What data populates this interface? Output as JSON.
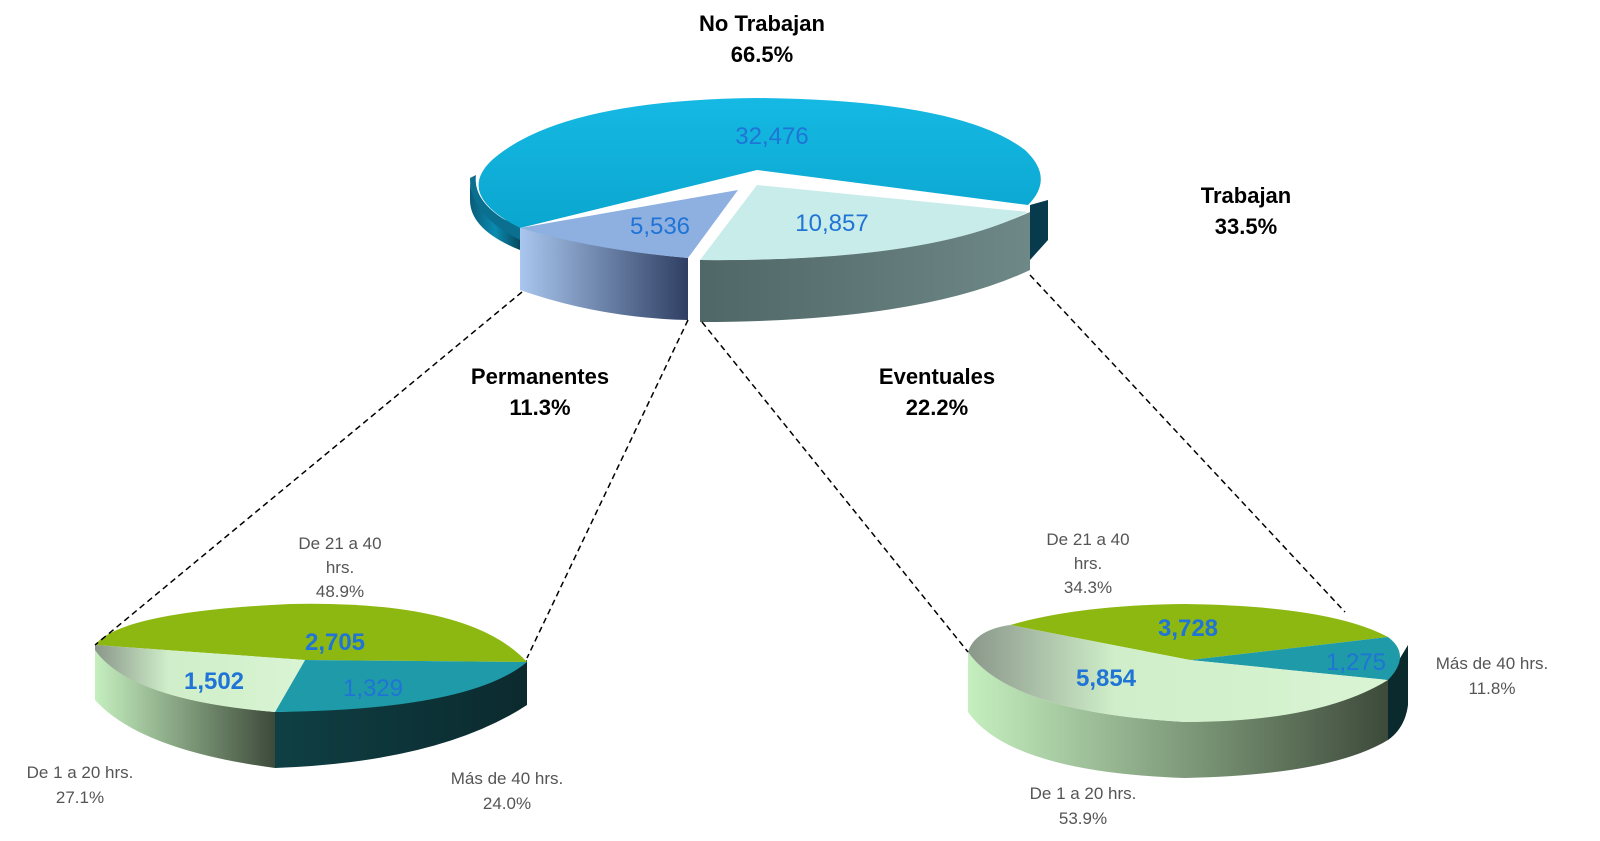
{
  "chart_data": [
    {
      "type": "pie",
      "slices": [
        {
          "label": "No Trabajan",
          "value": 32476,
          "percent": "66.5%",
          "value_text": "32,476",
          "color": "#0aa6cf"
        },
        {
          "label": "Trabajan",
          "value": 16393,
          "percent": "33.5%",
          "value_text": "",
          "color": "#5f7b7a"
        }
      ],
      "breakdown_of_trabajan": [
        {
          "label": "Permanentes",
          "value": 5536,
          "percent": "11.3%",
          "value_text": "5,536",
          "color": "#7ea1d6"
        },
        {
          "label": "Eventuales",
          "value": 10857,
          "percent": "22.2%",
          "value_text": "10,857",
          "color": "#c8ecea"
        }
      ]
    },
    {
      "type": "pie",
      "parent": "Permanentes",
      "slices": [
        {
          "label": "De 21 a 40 hrs.",
          "value": 2705,
          "percent": "48.9%",
          "value_text": "2,705",
          "color": "#8db812"
        },
        {
          "label": "Más de 40 hrs.",
          "value": 1329,
          "percent": "24.0%",
          "value_text": "1,329",
          "color": "#1e9aa8"
        },
        {
          "label": "De 1 a 20 hrs.",
          "value": 1502,
          "percent": "27.1%",
          "value_text": "1,502",
          "color": "#b9e8b4"
        }
      ]
    },
    {
      "type": "pie",
      "parent": "Eventuales",
      "slices": [
        {
          "label": "De 21 a 40 hrs.",
          "value": 3728,
          "percent": "34.3%",
          "value_text": "3,728",
          "color": "#8db812"
        },
        {
          "label": "Más de 40 hrs.",
          "value": 1275,
          "percent": "11.8%",
          "value_text": "1,275",
          "color": "#1e9aa8"
        },
        {
          "label": "De 1 a 20 hrs.",
          "value": 5854,
          "percent": "53.9%",
          "value_text": "5,854",
          "color": "#b9e8b4"
        }
      ]
    }
  ],
  "labels": {
    "no_trabajan": {
      "title": "No Trabajan",
      "pct": "66.5%"
    },
    "trabajan": {
      "title": "Trabajan",
      "pct": "33.5%"
    },
    "permanentes": {
      "title": "Permanentes",
      "pct": "11.3%"
    },
    "eventuales": {
      "title": "Eventuales",
      "pct": "22.2%"
    },
    "left_pie": {
      "h2140_line1": "De 21 a 40 hrs.",
      "h2140_pct": "48.9%",
      "h1_20": "De 1 a 20 hrs.",
      "h1_20_pct": "27.1%",
      "mas40": "Más de 40 hrs.",
      "mas40_pct": "24.0%"
    },
    "right_pie": {
      "h2140_line1": "De 21 a 40",
      "h2140_line2": "hrs.",
      "h2140_pct": "34.3%",
      "h1_20": "De 1 a 20 hrs.",
      "h1_20_pct": "53.9%",
      "mas40": "Más de 40 hrs.",
      "mas40_pct": "11.8%"
    },
    "left_pie_h2140_line1a": "De 21 a 40",
    "left_pie_h2140_line1b": "hrs."
  }
}
